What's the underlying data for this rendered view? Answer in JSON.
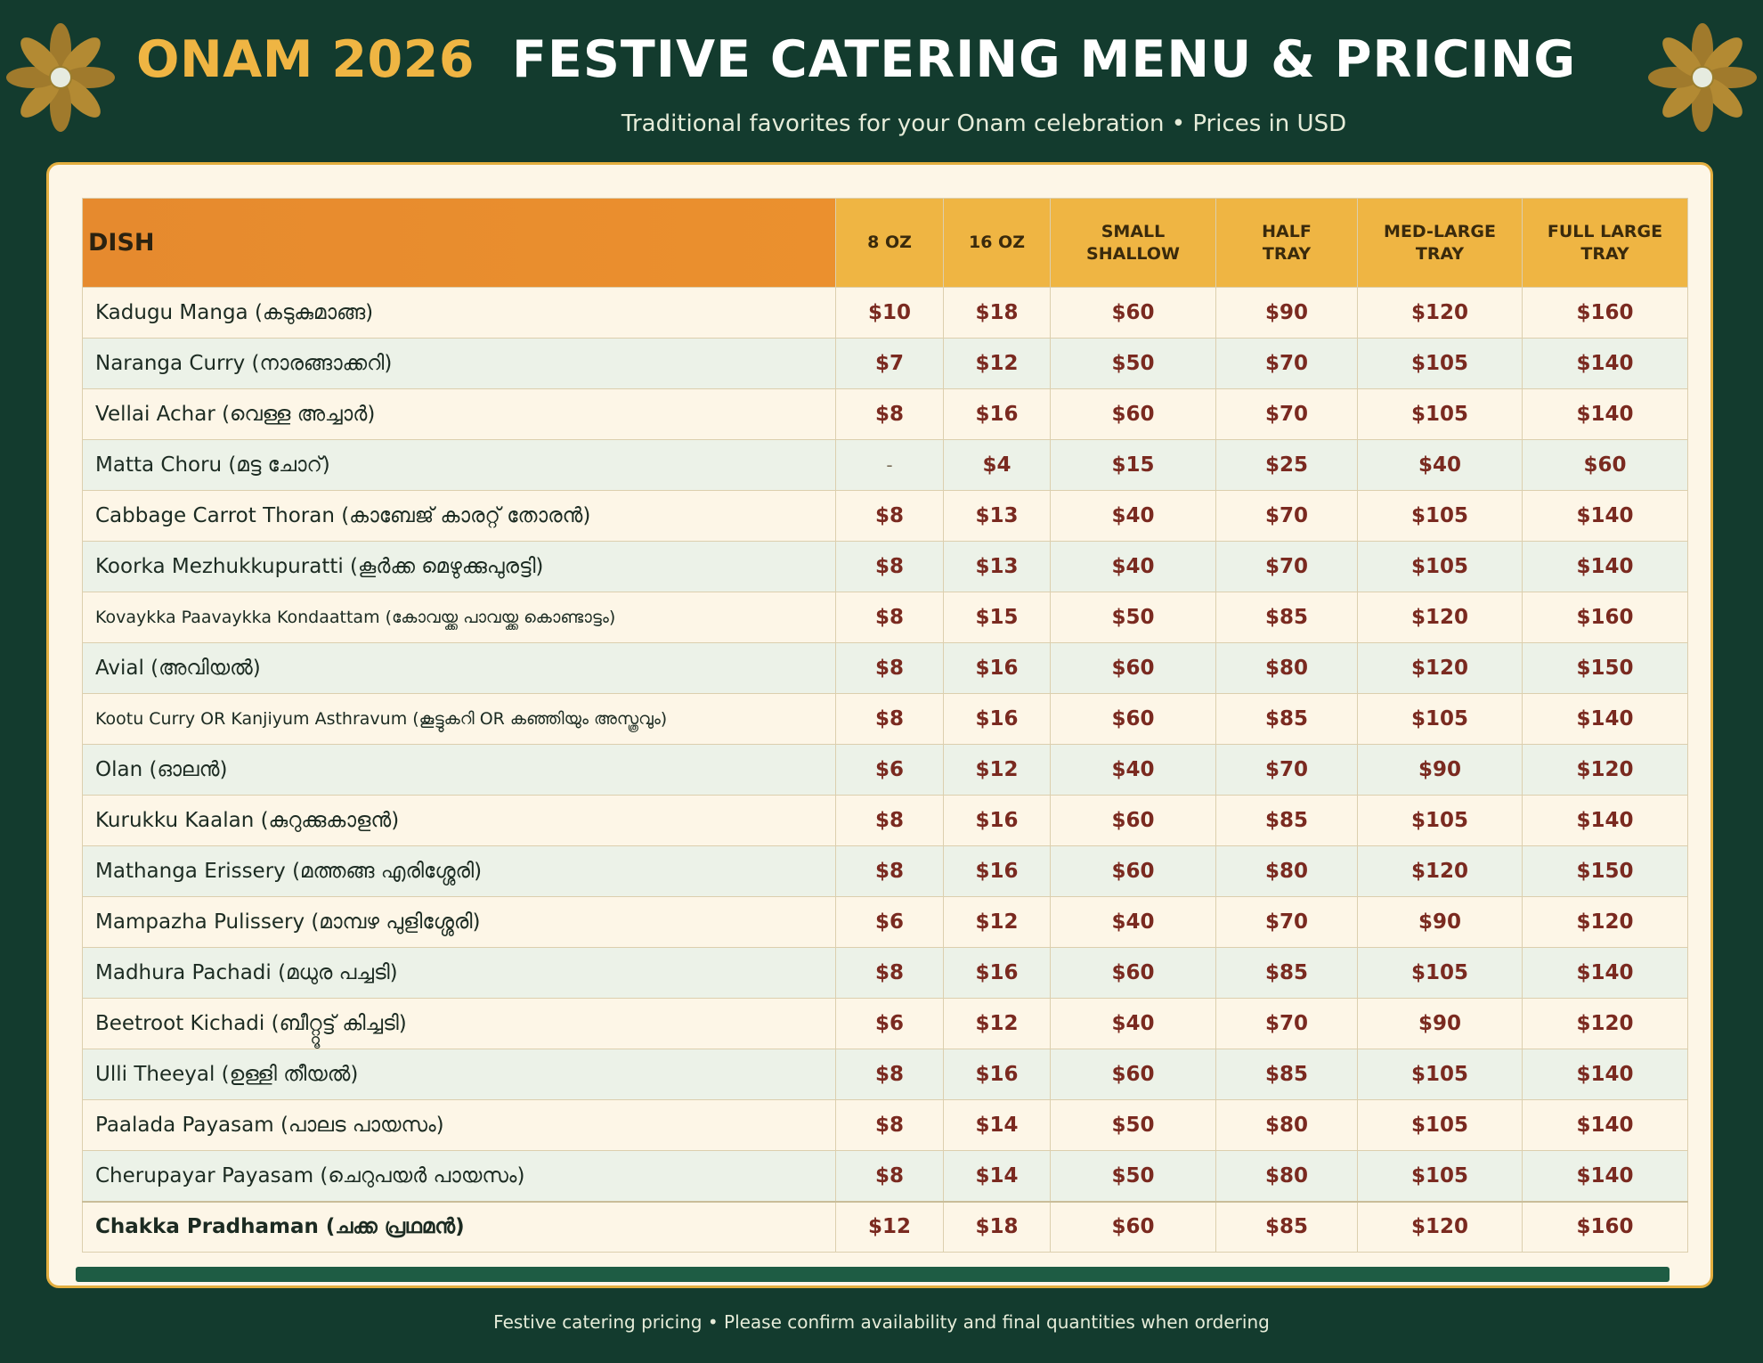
{
  "header": {
    "brand": "ONAM 2026",
    "title": "FESTIVE CATERING MENU & PRICING",
    "subtitle": "Traditional favorites for your Onam celebration  •  Prices in USD"
  },
  "colors": {
    "background": "#133b2e",
    "accent_gold": "#efb543",
    "dish_header_orange": "#e68a2e",
    "price_text": "#7a2a20",
    "card_bg": "#fdf6e7",
    "alt_row": "#ecf2e8",
    "bottom_bar": "#1e5c44"
  },
  "icons": {
    "decoration": "flower-icon"
  },
  "table": {
    "columns": [
      "DISH",
      "8 OZ",
      "16 OZ",
      "SMALL\nSHALLOW",
      "HALF\nTRAY",
      "MED-LARGE\nTRAY",
      "FULL LARGE\nTRAY"
    ],
    "rows": [
      {
        "dish": "Kadugu Manga (കടുകുമാങ്ങ)",
        "prices": [
          "$10",
          "$18",
          "$60",
          "$90",
          "$120",
          "$160"
        ]
      },
      {
        "dish": "Naranga Curry (നാരങ്ങാക്കറി)",
        "prices": [
          "$7",
          "$12",
          "$50",
          "$70",
          "$105",
          "$140"
        ]
      },
      {
        "dish": "Vellai Achar (വെള്ള അച്ചാർ)",
        "prices": [
          "$8",
          "$16",
          "$60",
          "$70",
          "$105",
          "$140"
        ]
      },
      {
        "dish": "Matta Choru (മട്ട ചോറ്)",
        "prices": [
          "-",
          "$4",
          "$15",
          "$25",
          "$40",
          "$60"
        ]
      },
      {
        "dish": "Cabbage Carrot Thoran (കാബേജ് കാരറ്റ് തോരൻ)",
        "prices": [
          "$8",
          "$13",
          "$40",
          "$70",
          "$105",
          "$140"
        ]
      },
      {
        "dish": "Koorka Mezhukkupuratti (കൂർക്ക മെഴുക്കുപുരട്ടി)",
        "prices": [
          "$8",
          "$13",
          "$40",
          "$70",
          "$105",
          "$140"
        ]
      },
      {
        "dish": "Kovaykka Paavaykka Kondaattam (കോവയ്ക്ക പാവയ്ക്ക കൊണ്ടാട്ടം)",
        "prices": [
          "$8",
          "$15",
          "$50",
          "$85",
          "$120",
          "$160"
        ]
      },
      {
        "dish": "Avial (അവിയൽ)",
        "prices": [
          "$8",
          "$16",
          "$60",
          "$80",
          "$120",
          "$150"
        ]
      },
      {
        "dish": "Kootu Curry OR Kanjiyum Asthravum (കൂട്ടുകറി OR കഞ്ഞിയും അസ്ത്രവും)",
        "prices": [
          "$8",
          "$16",
          "$60",
          "$85",
          "$105",
          "$140"
        ]
      },
      {
        "dish": "Olan (ഓലൻ)",
        "prices": [
          "$6",
          "$12",
          "$40",
          "$70",
          "$90",
          "$120"
        ]
      },
      {
        "dish": "Kurukku Kaalan (കുറുക്കുകാളൻ)",
        "prices": [
          "$8",
          "$16",
          "$60",
          "$85",
          "$105",
          "$140"
        ]
      },
      {
        "dish": "Mathanga Erissery (മത്തങ്ങ എരിശ്ശേരി)",
        "prices": [
          "$8",
          "$16",
          "$60",
          "$80",
          "$120",
          "$150"
        ]
      },
      {
        "dish": "Mampazha Pulissery (മാമ്പഴ പുളിശ്ശേരി)",
        "prices": [
          "$6",
          "$12",
          "$40",
          "$70",
          "$90",
          "$120"
        ]
      },
      {
        "dish": "Madhura Pachadi (മധുര പച്ചടി)",
        "prices": [
          "$8",
          "$16",
          "$60",
          "$85",
          "$105",
          "$140"
        ]
      },
      {
        "dish": "Beetroot Kichadi (ബീറ്റ്റൂട്ട് കിച്ചടി)",
        "prices": [
          "$6",
          "$12",
          "$40",
          "$70",
          "$90",
          "$120"
        ]
      },
      {
        "dish": "Ulli Theeyal (ഉള്ളി തീയൽ)",
        "prices": [
          "$8",
          "$16",
          "$60",
          "$85",
          "$105",
          "$140"
        ]
      },
      {
        "dish": "Paalada Payasam (പാലട പായസം)",
        "prices": [
          "$8",
          "$14",
          "$50",
          "$80",
          "$105",
          "$140"
        ]
      },
      {
        "dish": "Cherupayar Payasam (ചെറുപയർ പായസം)",
        "prices": [
          "$8",
          "$14",
          "$50",
          "$80",
          "$105",
          "$140"
        ]
      },
      {
        "dish": "Chakka Pradhaman (ചക്ക പ്രഥമൻ)",
        "prices": [
          "$12",
          "$18",
          "$60",
          "$85",
          "$120",
          "$160"
        ]
      }
    ]
  },
  "footer": "Festive catering pricing • Please confirm availability and final quantities when ordering"
}
